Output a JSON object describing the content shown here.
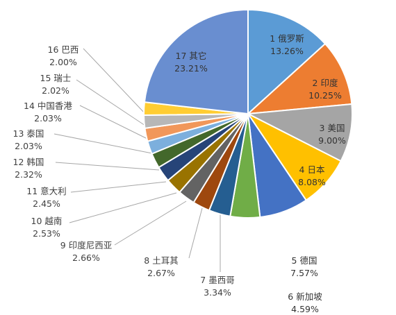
{
  "chart_data": {
    "type": "pie",
    "title": "",
    "slices": [
      {
        "rank": "1",
        "name": "俄罗斯",
        "value": 13.26,
        "value_label": "13.26%",
        "color": "#5b9bd5"
      },
      {
        "rank": "2",
        "name": "印度",
        "value": 10.25,
        "value_label": "10.25%",
        "color": "#ed7d31"
      },
      {
        "rank": "3",
        "name": "美国",
        "value": 9.0,
        "value_label": "9.00%",
        "color": "#a5a5a5"
      },
      {
        "rank": "4",
        "name": "日本",
        "value": 8.08,
        "value_label": "8.08%",
        "color": "#ffc000"
      },
      {
        "rank": "5",
        "name": "德国",
        "value": 7.57,
        "value_label": "7.57%",
        "color": "#4472c4"
      },
      {
        "rank": "6",
        "name": "新加坡",
        "value": 4.59,
        "value_label": "4.59%",
        "color": "#70ad47"
      },
      {
        "rank": "7",
        "name": "墨西哥",
        "value": 3.34,
        "value_label": "3.34%",
        "color": "#255e91"
      },
      {
        "rank": "8",
        "name": "土耳其",
        "value": 2.67,
        "value_label": "2.67%",
        "color": "#9e480e"
      },
      {
        "rank": "9",
        "name": "印度尼西亚",
        "value": 2.66,
        "value_label": "2.66%",
        "color": "#636363"
      },
      {
        "rank": "10",
        "name": "越南",
        "value": 2.53,
        "value_label": "2.53%",
        "color": "#997300"
      },
      {
        "rank": "11",
        "name": "意大利",
        "value": 2.45,
        "value_label": "2.45%",
        "color": "#264478"
      },
      {
        "rank": "12",
        "name": "韩国",
        "value": 2.32,
        "value_label": "2.32%",
        "color": "#43682b"
      },
      {
        "rank": "13",
        "name": "泰国",
        "value": 2.03,
        "value_label": "2.03%",
        "color": "#7cafdd"
      },
      {
        "rank": "14",
        "name": "中国香港",
        "value": 2.03,
        "value_label": "2.03%",
        "color": "#f1975a"
      },
      {
        "rank": "15",
        "name": "瑞士",
        "value": 2.02,
        "value_label": "2.02%",
        "color": "#b7b7b7"
      },
      {
        "rank": "16",
        "name": "巴西",
        "value": 2.0,
        "value_label": "2.00%",
        "color": "#ffcd33"
      },
      {
        "rank": "17",
        "name": "其它",
        "value": 23.21,
        "value_label": "23.21%",
        "color": "#698ed0"
      }
    ]
  }
}
